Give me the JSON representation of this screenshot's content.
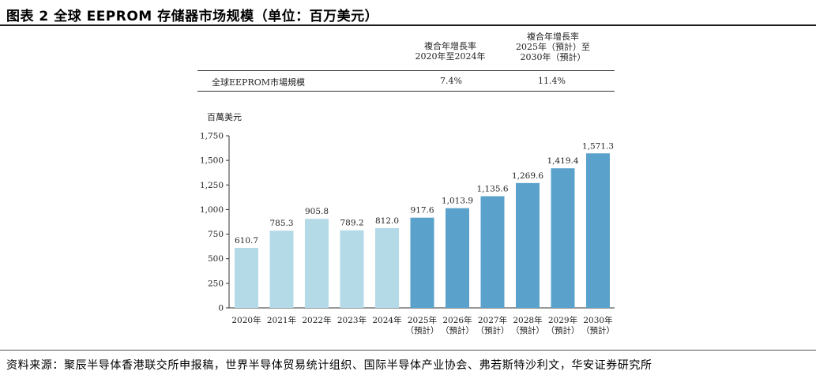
{
  "figure": {
    "title": "图表 2 全球 EEPROM 存储器市场规模（单位：百万美元）",
    "source": "资料来源：聚辰半导体香港联交所申报稿，世界半导体贸易统计组织、国际半导体产业协会、弗若斯特沙利文，华安证券研究所"
  },
  "table": {
    "col1_header": [
      "複合年增長率",
      "2020年至2024年"
    ],
    "col2_header": [
      "複合年增長率",
      "2025年（預計）至",
      "2030年（預計）"
    ],
    "row_label": "全球EEPROM市場規模",
    "col1_value": "7.4%",
    "col2_value": "11.4%"
  },
  "chart_data": {
    "type": "bar",
    "unit_label": "百萬美元",
    "categories": [
      [
        "2020年"
      ],
      [
        "2021年"
      ],
      [
        "2022年"
      ],
      [
        "2023年"
      ],
      [
        "2024年"
      ],
      [
        "2025年",
        "（預計）"
      ],
      [
        "2026年",
        "（預計）"
      ],
      [
        "2027年",
        "（預計）"
      ],
      [
        "2028年",
        "（預計）"
      ],
      [
        "2029年",
        "（預計）"
      ],
      [
        "2030年",
        "（預計）"
      ]
    ],
    "values": [
      610.7,
      785.3,
      905.8,
      789.2,
      812.0,
      917.6,
      1013.9,
      1135.6,
      1269.6,
      1419.4,
      1571.3
    ],
    "value_labels": [
      "610.7",
      "785.3",
      "905.8",
      "789.2",
      "812.0",
      "917.6",
      "1,013.9",
      "1,135.6",
      "1,269.6",
      "1,419.4",
      "1,571.3"
    ],
    "projected": [
      false,
      false,
      false,
      false,
      false,
      true,
      true,
      true,
      true,
      true,
      true
    ],
    "ylim": [
      0,
      1750
    ],
    "yticks": [
      0,
      250,
      500,
      750,
      1000,
      1250,
      1500,
      1750
    ],
    "ytick_labels": [
      "0",
      "250",
      "500",
      "750",
      "1,000",
      "1,250",
      "1,500",
      "1,750"
    ],
    "colors": {
      "historical": "#b4dae7",
      "projected": "#5aa2cb"
    },
    "grid": false
  }
}
